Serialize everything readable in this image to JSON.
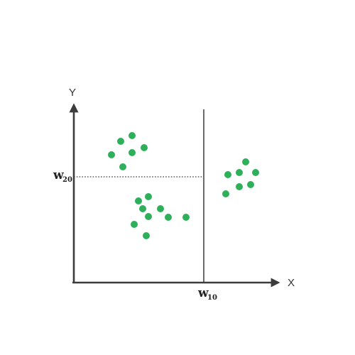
{
  "labels": {
    "x_axis": "X",
    "y_axis": "Y",
    "w10_main": "w",
    "w10_sub": "10",
    "w20_main": "w",
    "w20_sub": "20"
  },
  "colors": {
    "point": "#2eb05b",
    "axis": "#3c3c3c"
  },
  "points": [
    [
      170,
      199
    ],
    [
      186,
      191
    ],
    [
      157,
      218
    ],
    [
      186,
      215
    ],
    [
      203,
      208
    ],
    [
      173,
      235
    ],
    [
      195,
      283
    ],
    [
      209,
      277
    ],
    [
      201,
      294
    ],
    [
      226,
      294
    ],
    [
      209,
      305
    ],
    [
      237,
      306
    ],
    [
      262,
      306
    ],
    [
      189,
      316
    ],
    [
      206,
      332
    ],
    [
      346,
      228
    ],
    [
      321,
      246
    ],
    [
      337,
      243
    ],
    [
      360,
      243
    ],
    [
      318,
      273
    ],
    [
      337,
      263
    ],
    [
      353,
      260
    ]
  ]
}
